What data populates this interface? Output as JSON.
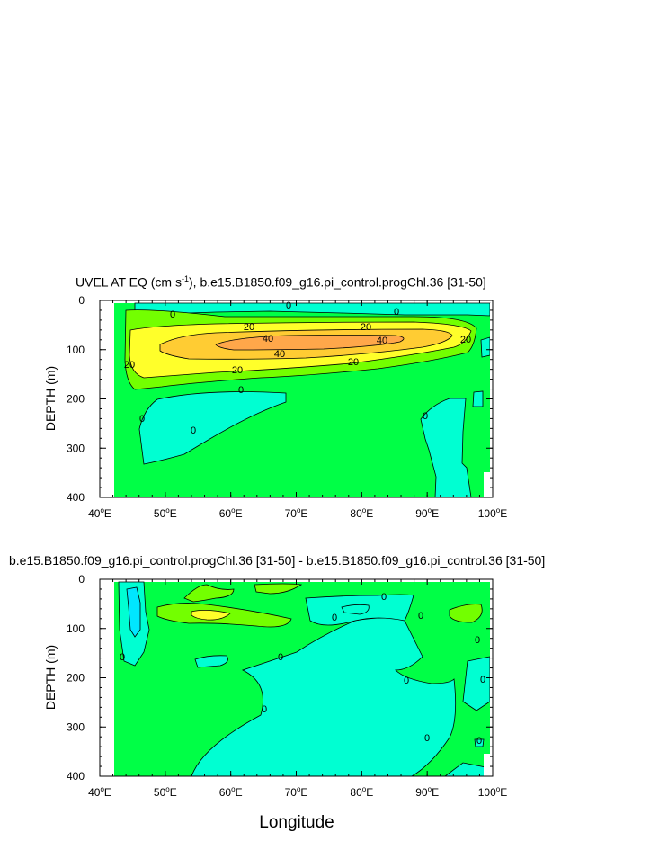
{
  "chart_data": [
    {
      "type": "contour",
      "title_main": "UVEL AT EQ (cm s",
      "title_sup": "-1",
      "title_rest": "), b.e15.B1850.f09_g16.pi_control.progChl.36 [31-50]",
      "ylabel": "DEPTH (m)",
      "xlabel": "",
      "xlim": [
        40,
        100
      ],
      "ylim": [
        0,
        400
      ],
      "y_reversed": true,
      "xticks": [
        40,
        50,
        60,
        70,
        80,
        90,
        100
      ],
      "yticks": [
        0,
        100,
        200,
        300,
        400
      ],
      "contour_labels": [
        "0",
        "0",
        "0",
        "20",
        "20",
        "40",
        "40",
        "40",
        "20",
        "20",
        "20",
        "20",
        "0",
        "0",
        "0",
        "0"
      ],
      "fill_colors": {
        "negative": "#00ffd2",
        "zero_to_20": "#00ff46",
        "20_to_40": "#73ff00",
        "40_to_60": "#ffff2a",
        "60_to_80": "#ffcc33",
        "80_plus": "#ffa74a"
      }
    },
    {
      "type": "contour",
      "title": "b.e15.B1850.f09_g16.pi_control.progChl.36 [31-50] - b.e15.B1850.f09_g16.pi_control.36 [31-50]",
      "ylabel": "DEPTH (m)",
      "xlabel": "Longitude",
      "xlim": [
        40,
        100
      ],
      "ylim": [
        0,
        400
      ],
      "y_reversed": true,
      "xticks": [
        40,
        50,
        60,
        70,
        80,
        90,
        100
      ],
      "yticks": [
        0,
        100,
        200,
        300,
        400
      ],
      "contour_labels": [
        "0",
        "0",
        "0",
        "0",
        "0",
        "0",
        "0",
        "0",
        "0",
        "0",
        "0"
      ],
      "fill_colors": {
        "strong_negative": "#00e6ff",
        "negative": "#00ffd2",
        "zero": "#00ff46",
        "positive": "#73ff00",
        "strong_positive": "#ffff2a"
      }
    }
  ],
  "tick_labels_x": [
    "40",
    "50",
    "60",
    "70",
    "80",
    "90",
    "100"
  ],
  "tick_unit_x": "E",
  "tick_labels_y": [
    "0",
    "100",
    "200",
    "300",
    "400"
  ]
}
